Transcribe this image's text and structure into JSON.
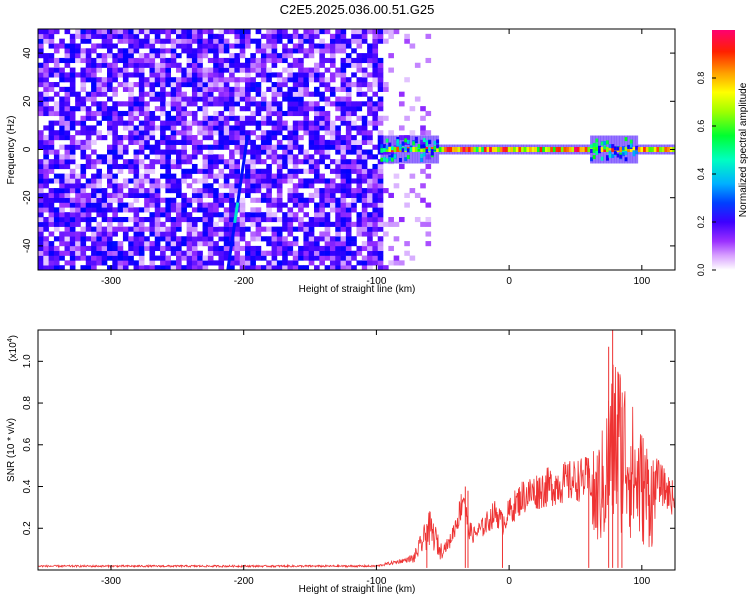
{
  "title": "C2E5.2025.036.00.51.G25",
  "chart_data": [
    {
      "type": "heatmap",
      "title": "C2E5.2025.036.00.51.G25",
      "xlabel": "Height of straight line (km)",
      "ylabel": "Frequency (Hz)",
      "xlim": [
        -355,
        125
      ],
      "ylim": [
        -50,
        50
      ],
      "x_ticks": [
        -300,
        -200,
        -100,
        0,
        100
      ],
      "y_ticks": [
        -40,
        -20,
        0,
        20,
        40
      ],
      "colorbar": {
        "label": "Normalized spectral amplitude",
        "range": [
          0,
          1
        ],
        "ticks": [
          "0.0",
          "0.2",
          "0.4",
          "0.6",
          "0.8"
        ],
        "colors": [
          "#ffffff",
          "#9b30ff",
          "#3c00ff",
          "#0000ff",
          "#00b0ff",
          "#00ffb0",
          "#00ff00",
          "#b0ff00",
          "#ffff00",
          "#ffa000",
          "#ff2000",
          "#ff0070"
        ]
      },
      "features": {
        "noise_region_x": [
          -355,
          -95
        ],
        "noise_speckle_x": [
          -95,
          -60
        ],
        "carrier_frequency_hz": 0,
        "carrier_start_x": -97,
        "disturbed_regions_x": [
          [
            -100,
            -55
          ],
          [
            60,
            95
          ]
        ],
        "streak": {
          "x_start": -212,
          "y_start": -50,
          "x_end": -197,
          "y_end": 6
        }
      },
      "grid": false
    },
    {
      "type": "line",
      "xlabel": "Height of straight line (km)",
      "ylabel": "SNR (10 * v/v)",
      "scale_label": "(x10",
      "scale_exp": "4",
      "xlim": [
        -355,
        125
      ],
      "ylim": [
        0,
        1.15
      ],
      "x_ticks": [
        -300,
        -200,
        -100,
        0,
        100
      ],
      "y_ticks": [
        "0.2",
        "0.4",
        "0.6",
        "0.8",
        "1.0"
      ],
      "series": [
        {
          "color": "#ee3333",
          "envelope": {
            "x": [
              -355,
              -200,
              -100,
              -72,
              -66,
              -60,
              -55,
              -52,
              -45,
              -38,
              -34,
              -31,
              -27,
              -20,
              -10,
              -5,
              0,
              10,
              25,
              40,
              55,
              65,
              72,
              76,
              80,
              88,
              95,
              105,
              115,
              125
            ],
            "y": [
              0.02,
              0.02,
              0.02,
              0.06,
              0.14,
              0.22,
              0.16,
              0.1,
              0.14,
              0.28,
              0.4,
              0.22,
              0.18,
              0.22,
              0.3,
              0.24,
              0.3,
              0.38,
              0.42,
              0.45,
              0.47,
              0.48,
              0.6,
              0.8,
              0.9,
              0.8,
              0.62,
              0.52,
              0.44,
              0.36
            ]
          },
          "spikes": [
            {
              "x": -62,
              "y": 0.22
            },
            {
              "x": -33,
              "y": 0.4
            },
            {
              "x": -31,
              "y": 0.38
            },
            {
              "x": -5,
              "y": 0.27
            },
            {
              "x": 60,
              "y": 0.5
            },
            {
              "x": 75,
              "y": 1.07
            },
            {
              "x": 78,
              "y": 1.15
            },
            {
              "x": 82,
              "y": 0.95
            },
            {
              "x": 85,
              "y": 0.78
            }
          ]
        }
      ],
      "grid": false
    }
  ]
}
